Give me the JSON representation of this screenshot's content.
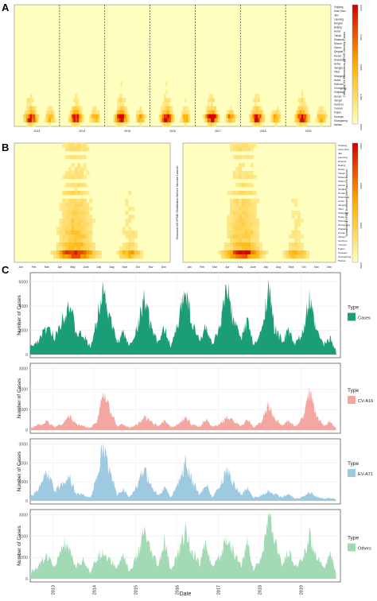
{
  "panels": {
    "a_label": "A",
    "b_label": "B",
    "c_label": "C"
  },
  "colors": {
    "heat_low": "#ffffc0",
    "heat_mid": "#ffb000",
    "heat_high": "#d40000",
    "cases": "#1b9e77",
    "cva16": "#f4a6a0",
    "ev71": "#9ecae1",
    "others": "#a1dab4"
  },
  "provinces": [
    "Xinjiang",
    "Inner Mon.",
    "Jilin",
    "Liaoning",
    "Ningxia",
    "Beijing",
    "Hebei",
    "Tianjin",
    "Shaanxi",
    "Shanxi",
    "Gansu",
    "Qinghai",
    "Henan",
    "Shandong",
    "Anhui",
    "Jiangsu",
    "Tibet",
    "Shanghai",
    "Hubei",
    "Sichuan",
    "Chongqing",
    "Zhejiang",
    "Hunan",
    "Jiangxi",
    "Guizhou",
    "Yunnan",
    "Fujian",
    "Guangxi",
    "Guangdong",
    "Hainan"
  ],
  "chart_data": [
    {
      "type": "heatmap",
      "panel": "A",
      "x_tick_labels": [
        "2013",
        "2014",
        "2015",
        "2016",
        "2017",
        "2018",
        "2019"
      ],
      "y_categories_ref": "provinces",
      "colorbar_label": "Category All Enterovirus-HFMD Weekly Cases",
      "colorbar_ticks": [
        "0.000",
        "0.000",
        "0.005",
        "0.010",
        "0.015"
      ],
      "hotspot_rows": [
        "Guangxi",
        "Guangdong",
        "Fujian",
        "Yunnan",
        "Hainan",
        "Jiangxi",
        "Guizhou"
      ],
      "peak_season": "late spring / early summer, secondary autumn peak"
    },
    {
      "type": "heatmap",
      "panel": "B",
      "x_tick_labels": [
        "Jan",
        "Feb",
        "Mar",
        "Apr",
        "May",
        "June",
        "July",
        "Aug",
        "Sept",
        "Oct",
        "Nov",
        "Dec"
      ],
      "left_title": "Seasonal All HFMD Distribution Before Vaccine Launch",
      "right_title": "Seasonal All HFMD Distribution After Vaccine Launch",
      "colorbar_ticks": [
        "0.000",
        "0.001",
        "0.002",
        "0.003"
      ],
      "hotspot_rows": [
        "Guangxi",
        "Guangdong",
        "Yunnan",
        "Fujian",
        "Jiangxi",
        "Guizhou"
      ]
    },
    {
      "type": "area",
      "panel": "C",
      "title": "",
      "xlabel": "Date",
      "ylabel": "Number of Cases",
      "x_tick_labels": [
        "2013",
        "2014",
        "2015",
        "2016",
        "2017",
        "2018",
        "2019"
      ],
      "x_range": [
        2012.5,
        2020.0
      ],
      "series": [
        {
          "name": "Cases",
          "legend_title": "Type",
          "ylim": [
            0,
            6500
          ],
          "yticks": [
            0,
            2000,
            4000,
            6000
          ],
          "x": [
            2012.5,
            2012.7,
            2012.9,
            2013.1,
            2013.3,
            2013.45,
            2013.6,
            2013.8,
            2013.95,
            2014.1,
            2014.25,
            2014.4,
            2014.6,
            2014.75,
            2014.9,
            2015.1,
            2015.25,
            2015.4,
            2015.6,
            2015.75,
            2015.9,
            2016.1,
            2016.25,
            2016.4,
            2016.6,
            2016.75,
            2016.9,
            2017.1,
            2017.25,
            2017.4,
            2017.6,
            2017.75,
            2017.9,
            2018.1,
            2018.25,
            2018.4,
            2018.6,
            2018.75,
            2018.9,
            2019.1,
            2019.25,
            2019.4,
            2019.6,
            2019.75,
            2019.9
          ],
          "values": [
            600,
            1200,
            2200,
            1400,
            3200,
            4400,
            1800,
            1500,
            600,
            2500,
            5900,
            3300,
            1000,
            1800,
            700,
            2300,
            4800,
            2500,
            900,
            2200,
            600,
            2800,
            5900,
            2700,
            1100,
            2400,
            700,
            2300,
            5600,
            2900,
            1300,
            2900,
            700,
            1900,
            5700,
            2200,
            1100,
            2000,
            800,
            1800,
            4600,
            2100,
            800,
            1400,
            300
          ]
        },
        {
          "name": "CV-A16",
          "legend_title": "Type",
          "ylim": [
            0,
            3100
          ],
          "yticks": [
            0,
            1000,
            2000,
            3000
          ],
          "x": [
            2012.5,
            2012.7,
            2012.9,
            2013.1,
            2013.3,
            2013.45,
            2013.6,
            2013.8,
            2013.95,
            2014.1,
            2014.25,
            2014.4,
            2014.6,
            2014.75,
            2014.9,
            2015.1,
            2015.25,
            2015.4,
            2015.6,
            2015.75,
            2015.9,
            2016.1,
            2016.25,
            2016.4,
            2016.6,
            2016.75,
            2016.9,
            2017.1,
            2017.25,
            2017.4,
            2017.6,
            2017.75,
            2017.9,
            2018.1,
            2018.25,
            2018.4,
            2018.6,
            2018.75,
            2018.9,
            2019.1,
            2019.25,
            2019.4,
            2019.6,
            2019.75,
            2019.9
          ],
          "values": [
            80,
            250,
            400,
            150,
            350,
            700,
            300,
            200,
            100,
            400,
            1800,
            1100,
            200,
            300,
            100,
            300,
            650,
            400,
            200,
            450,
            150,
            300,
            600,
            300,
            150,
            500,
            150,
            300,
            600,
            450,
            200,
            500,
            150,
            400,
            1300,
            600,
            200,
            500,
            150,
            600,
            1800,
            800,
            200,
            450,
            100
          ]
        },
        {
          "name": "EV-A71",
          "legend_title": "Type",
          "ylim": [
            0,
            3100
          ],
          "yticks": [
            0,
            1000,
            2000,
            3000
          ],
          "x": [
            2012.5,
            2012.7,
            2012.9,
            2013.1,
            2013.3,
            2013.45,
            2013.6,
            2013.8,
            2013.95,
            2014.1,
            2014.25,
            2014.4,
            2014.6,
            2014.75,
            2014.9,
            2015.1,
            2015.25,
            2015.4,
            2015.6,
            2015.75,
            2015.9,
            2016.1,
            2016.25,
            2016.4,
            2016.6,
            2016.75,
            2016.9,
            2017.1,
            2017.25,
            2017.4,
            2017.6,
            2017.75,
            2017.9,
            2018.1,
            2018.25,
            2018.4,
            2018.6,
            2018.75,
            2018.9,
            2019.1,
            2019.25,
            2019.4,
            2019.6,
            2019.75,
            2019.9
          ],
          "values": [
            200,
            600,
            1500,
            500,
            1000,
            1300,
            400,
            300,
            150,
            1100,
            2900,
            1700,
            300,
            600,
            200,
            800,
            1700,
            900,
            300,
            700,
            200,
            1000,
            2000,
            1100,
            300,
            900,
            200,
            800,
            1700,
            1000,
            300,
            700,
            150,
            300,
            500,
            350,
            200,
            350,
            100,
            200,
            500,
            250,
            100,
            150,
            80
          ]
        },
        {
          "name": "Others",
          "legend_title": "Type",
          "ylim": [
            0,
            3100
          ],
          "yticks": [
            0,
            1000,
            2000,
            3000
          ],
          "x": [
            2012.5,
            2012.7,
            2012.9,
            2013.1,
            2013.3,
            2013.45,
            2013.6,
            2013.8,
            2013.95,
            2014.1,
            2014.25,
            2014.4,
            2014.6,
            2014.75,
            2014.9,
            2015.1,
            2015.25,
            2015.4,
            2015.6,
            2015.75,
            2015.9,
            2016.1,
            2016.25,
            2016.4,
            2016.6,
            2016.75,
            2016.9,
            2017.1,
            2017.25,
            2017.4,
            2017.6,
            2017.75,
            2017.9,
            2018.1,
            2018.25,
            2018.4,
            2018.6,
            2018.75,
            2018.9,
            2019.1,
            2019.25,
            2019.4,
            2019.6,
            2019.75,
            2019.9
          ],
          "values": [
            300,
            600,
            1100,
            500,
            1700,
            1200,
            600,
            900,
            300,
            900,
            1300,
            900,
            500,
            1200,
            300,
            1100,
            2200,
            1300,
            600,
            1700,
            400,
            1300,
            2300,
            1300,
            700,
            1700,
            500,
            1000,
            2000,
            1300,
            600,
            1700,
            400,
            1000,
            3100,
            1800,
            600,
            1300,
            500,
            1000,
            2000,
            1200,
            500,
            1200,
            200
          ]
        }
      ]
    }
  ]
}
